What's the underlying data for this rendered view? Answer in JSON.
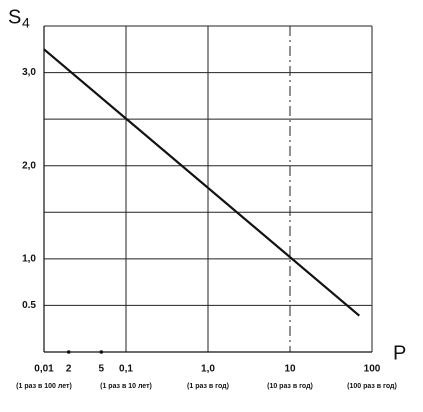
{
  "chart_data": {
    "type": "line",
    "xlabel": "P",
    "ylabel": "S",
    "ylabel_sub": "4",
    "x_log": true,
    "xlim": [
      0.01,
      100
    ],
    "ylim": [
      0,
      3.5
    ],
    "xticks": [
      {
        "value": 0.01,
        "label": "0,01"
      },
      {
        "value": 0.1,
        "label": "0,1"
      },
      {
        "value": 1,
        "label": "1,0"
      },
      10,
      100
    ],
    "minor_xticks": [
      {
        "value": 0.02,
        "label": "2"
      },
      {
        "value": 0.05,
        "label": "5"
      }
    ],
    "x_notes": [
      "(1 раз в 100 лет)",
      "(1 раз в 10 лет)",
      "(1 раз в год)",
      "(10 раз в год)",
      "(100 раз в год)"
    ],
    "yticks": [
      {
        "value": 0.5,
        "label": "0.5"
      },
      {
        "value": 1,
        "label": "1,0"
      },
      {
        "value": 2,
        "label": "2,0"
      },
      {
        "value": 3,
        "label": "3,0"
      }
    ],
    "minor_yticks": [
      1.5,
      2.5,
      3.5
    ],
    "grid": true,
    "color": "#111111",
    "series": [
      {
        "x": [
          0.01,
          70
        ],
        "values": [
          3.25,
          0.39
        ]
      }
    ]
  }
}
